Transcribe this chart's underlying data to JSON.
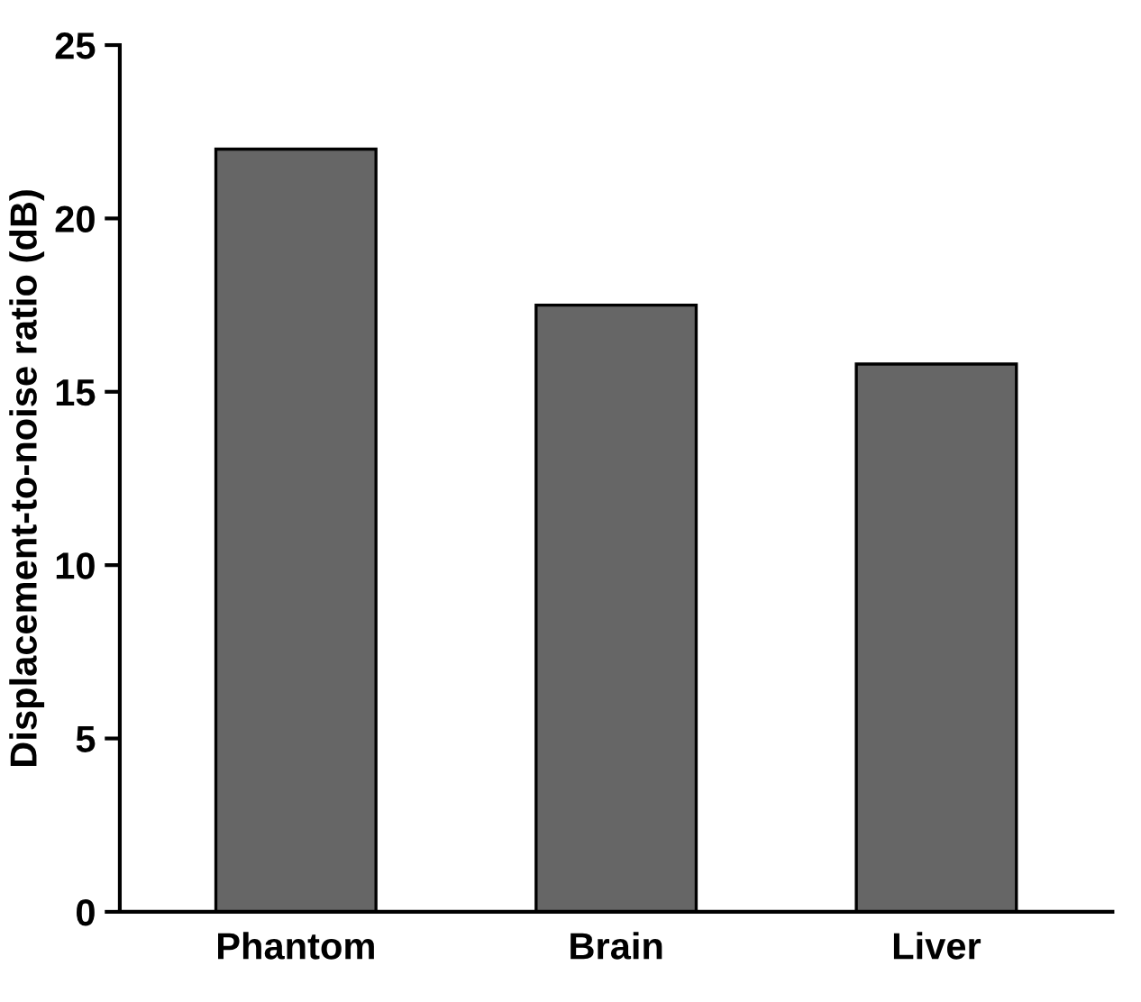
{
  "chart_data": {
    "type": "bar",
    "ylabel": "Displacement-to-noise ratio (dB)",
    "categories": [
      "Phantom",
      "Brain",
      "Liver"
    ],
    "values": [
      22.0,
      17.5,
      15.8
    ],
    "color": "#666666",
    "ylim": [
      0,
      25
    ],
    "yticks": [
      0,
      5,
      10,
      15,
      20,
      25
    ],
    "grid": false
  }
}
